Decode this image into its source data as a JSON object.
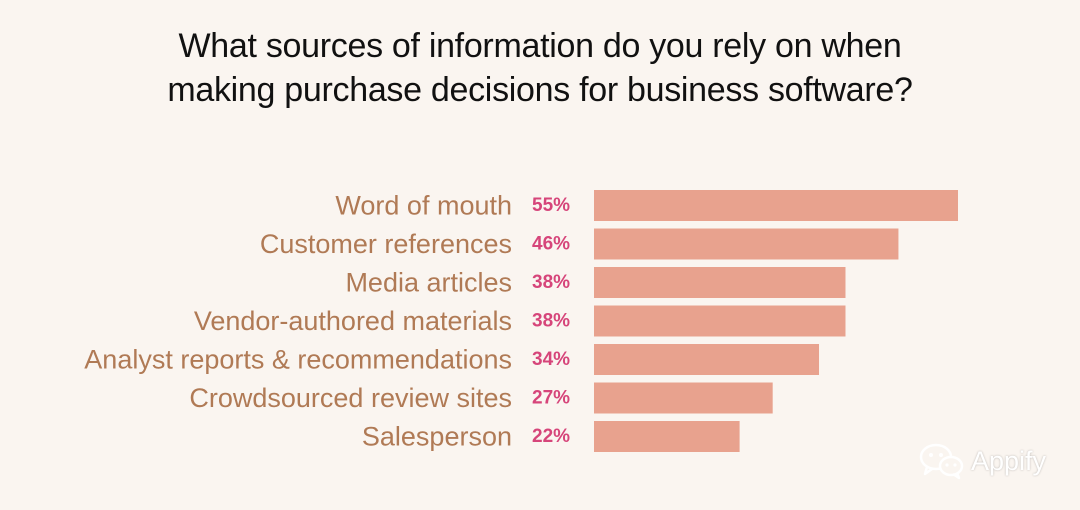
{
  "title_lines": [
    "What sources of information do you rely on when",
    "making purchase decisions for business software?"
  ],
  "watermark": {
    "icon": "wechat-icon",
    "text": "Appify"
  },
  "colors": {
    "background": "#faf5f0",
    "bar": "#e8a28e",
    "category_label": "#b07a55",
    "value_label": "#d6457a",
    "title": "#111111"
  },
  "chart_data": {
    "type": "bar",
    "orientation": "horizontal",
    "title": "What sources of information do you rely on when making purchase decisions for business software?",
    "categories": [
      "Word of mouth",
      "Customer references",
      "Media articles",
      "Vendor-authored materials",
      "Analyst reports & recommendations",
      "Crowdsourced review sites",
      "Salesperson"
    ],
    "values": [
      55,
      46,
      38,
      38,
      34,
      27,
      22
    ],
    "value_labels": [
      "55%",
      "46%",
      "38%",
      "38%",
      "34%",
      "27%",
      "22%"
    ],
    "unit": "%",
    "xlim": [
      0,
      55
    ],
    "grid": false,
    "legend": "none"
  }
}
